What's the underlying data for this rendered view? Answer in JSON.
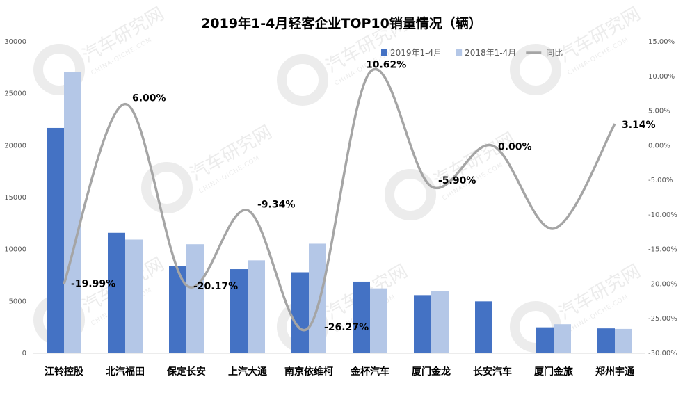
{
  "chart_data": {
    "type": "bar",
    "title": "2019年1-4月轻客企业TOP10销量情况（辆）",
    "categories": [
      "江铃控股",
      "北汽福田",
      "保定长安",
      "上汽大通",
      "南京依维柯",
      "金杯汽车",
      "厦门金龙",
      "长安汽车",
      "厦门金旅",
      "郑州宇通"
    ],
    "series": [
      {
        "name": "2019年1-4月",
        "type": "bar",
        "axis": "left",
        "color": "#4472C4",
        "values": [
          21700,
          11600,
          8400,
          8100,
          7800,
          6900,
          5600,
          5000,
          2500,
          2400
        ]
      },
      {
        "name": "2018年1-4月",
        "type": "bar",
        "axis": "left",
        "color": "#B4C7E7",
        "values": [
          27100,
          10950,
          10500,
          8950,
          10550,
          6250,
          6000,
          null,
          2800,
          2350
        ]
      },
      {
        "name": "同比",
        "type": "line",
        "smooth": true,
        "axis": "right",
        "color": "#A5A5A5",
        "values": [
          -19.99,
          6.0,
          -20.17,
          -9.34,
          -26.27,
          10.62,
          -5.9,
          0.0,
          -12.0,
          3.14
        ],
        "labels": [
          "-19.99%",
          "6.00%",
          "-20.17%",
          "-9.34%",
          "-26.27%",
          "10.62%",
          "-5.90%",
          "0.00%",
          "",
          "3.14%"
        ]
      }
    ],
    "y_left": {
      "min": 0,
      "max": 30000,
      "ticks": [
        "0",
        "5000",
        "10000",
        "15000",
        "20000",
        "25000",
        "30000"
      ]
    },
    "y_right": {
      "min": -30,
      "max": 15,
      "ticks": [
        "-30.00%",
        "-25.00%",
        "-20.00%",
        "-15.00%",
        "-10.00%",
        "-5.00%",
        "0.00%",
        "5.00%",
        "10.00%",
        "15.00%"
      ]
    },
    "legend_position": "top-right",
    "grid": false
  },
  "watermark": {
    "text": "汽车研究网",
    "sub": "CHINA-QICHE.COM"
  }
}
